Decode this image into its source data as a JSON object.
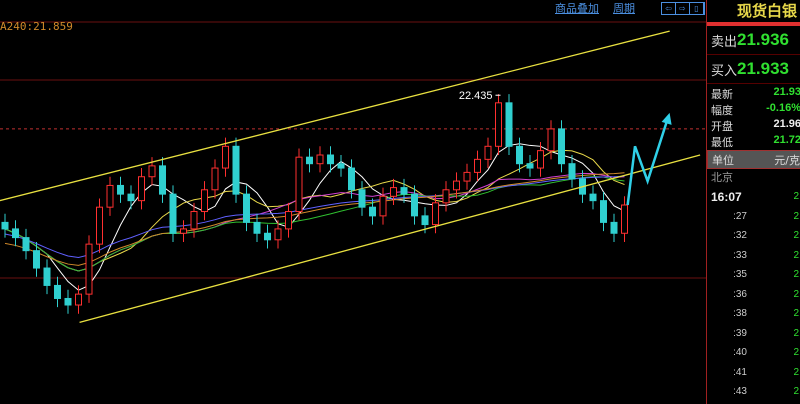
{
  "toolbar": {
    "overlay": "商品叠加",
    "period": "周期",
    "nav_icons": [
      "arrow-left-icon",
      "arrow-right-icon",
      "panel-icon"
    ]
  },
  "ma_label": "A240:21.859",
  "chart_data": {
    "type": "candlestick",
    "closes": [
      21.82,
      21.78,
      21.72,
      21.64,
      21.56,
      21.5,
      21.47,
      21.52,
      21.75,
      21.92,
      22.02,
      21.98,
      21.95,
      22.06,
      22.11,
      21.98,
      21.8,
      21.82,
      21.9,
      22.0,
      22.1,
      22.2,
      21.98,
      21.85,
      21.8,
      21.77,
      21.82,
      21.9,
      22.15,
      22.12,
      22.16,
      22.12,
      22.1,
      22.0,
      21.92,
      21.88,
      21.97,
      22.01,
      21.98,
      21.88,
      21.84,
      21.94,
      22.0,
      22.04,
      22.08,
      22.14,
      22.2,
      22.4,
      22.2,
      22.12,
      22.1,
      22.18,
      22.28,
      22.12,
      22.05,
      21.98,
      21.95,
      21.85,
      21.8,
      21.93
    ],
    "peak_label": "22.435",
    "peak_value": 22.435,
    "ylim": [
      21.2,
      22.85
    ],
    "resistance_level": 22.28,
    "channel_upper": [
      [
        -0.5,
        21.95
      ],
      [
        63.3,
        22.73
      ]
    ],
    "channel_lower": [
      [
        7.1,
        21.39
      ],
      [
        66.2,
        22.16
      ]
    ],
    "forecast_arrow": [
      [
        59.3,
        21.93
      ],
      [
        60,
        22.2
      ],
      [
        61.2,
        22.04
      ],
      [
        63.2,
        22.34
      ]
    ],
    "moving_averages": [
      {
        "period": 5,
        "color": "#ffffff"
      },
      {
        "period": 10,
        "color": "#e8d84a"
      },
      {
        "period": 20,
        "color": "#d040d0"
      },
      {
        "period": 30,
        "color": "#30c030"
      },
      {
        "period": 60,
        "color": "#6060ff"
      },
      {
        "period": 240,
        "color": "#d08a2a"
      }
    ],
    "colors": {
      "up": "#ff3030",
      "down": "#30d0d0",
      "channel": "#e8e040",
      "arrow": "#30d0e8"
    }
  },
  "panel": {
    "title": "现货白银",
    "sell_label": "卖出",
    "sell": "21.936",
    "buy_label": "买入",
    "buy": "21.933",
    "rows": [
      {
        "label": "最新",
        "value": "21.93",
        "color": "#30e030"
      },
      {
        "label": "幅度",
        "value": "-0.16%",
        "color": "#30e030"
      },
      {
        "label": "开盘",
        "value": "21.96",
        "color": "#eeeeee"
      },
      {
        "label": "最低",
        "value": "21.72",
        "color": "#30e030"
      }
    ],
    "unit_label": "单位",
    "unit": "元/克",
    "city": "北京",
    "ticks": [
      {
        "t": "16:07",
        "p": "2"
      },
      {
        "t": ":27",
        "p": "2"
      },
      {
        "t": ":32",
        "p": "2"
      },
      {
        "t": ":33",
        "p": "2"
      },
      {
        "t": ":35",
        "p": "2"
      },
      {
        "t": ":36",
        "p": "2"
      },
      {
        "t": ":38",
        "p": "2"
      },
      {
        "t": ":39",
        "p": "2"
      },
      {
        "t": ":40",
        "p": "2"
      },
      {
        "t": ":41",
        "p": "2"
      },
      {
        "t": ":43",
        "p": "2"
      }
    ]
  }
}
